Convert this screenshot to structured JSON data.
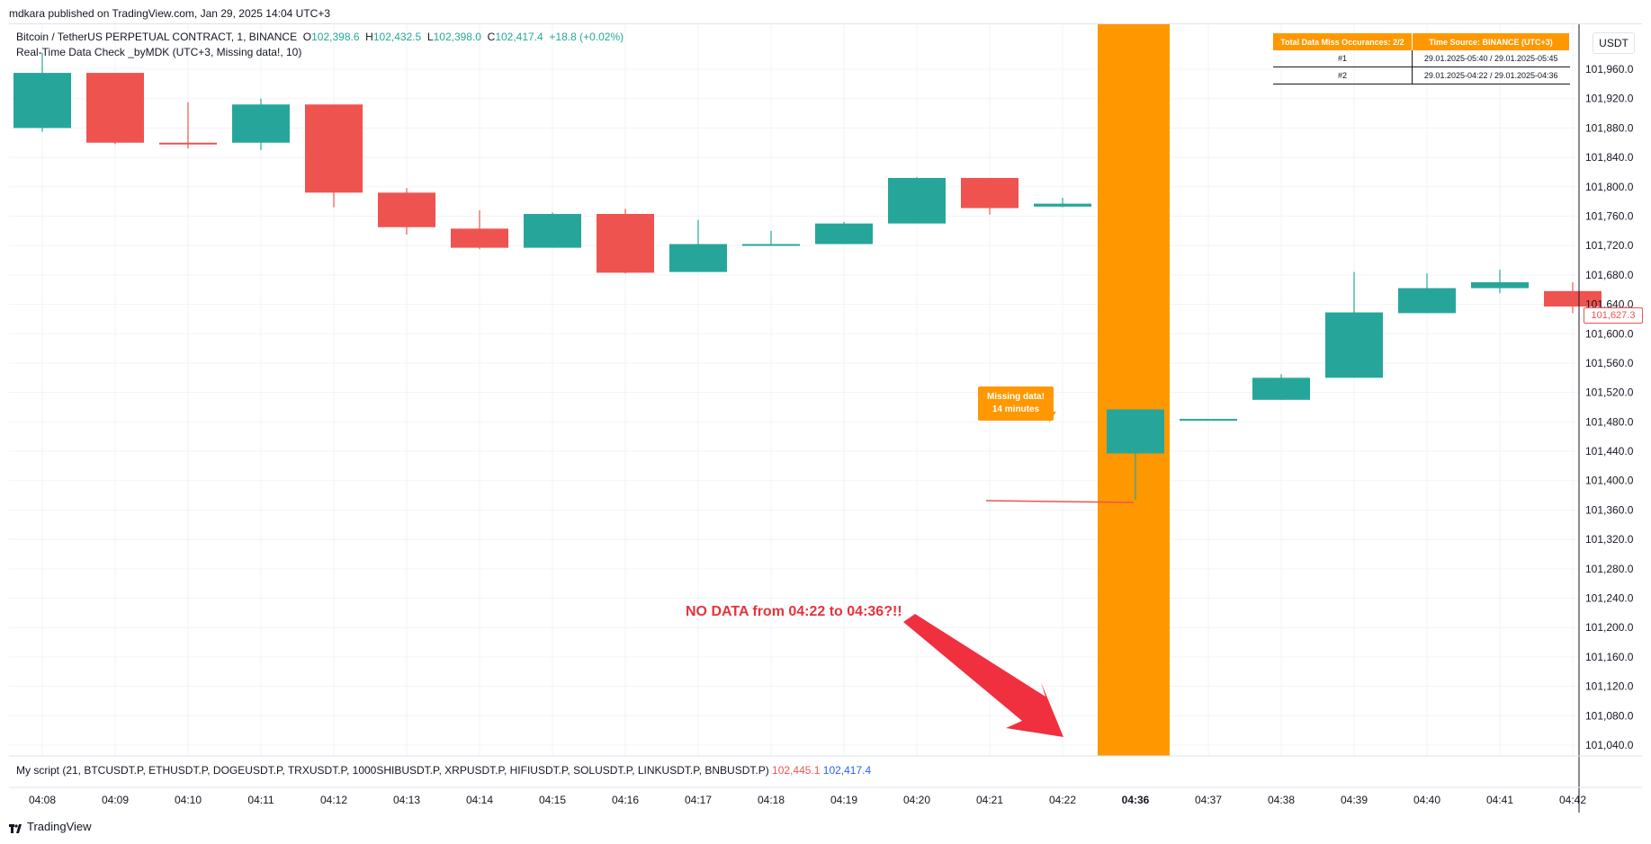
{
  "header": {
    "publish_line": "mdkara published on TradingView.com, Jan 29, 2025 14:04 UTC+3"
  },
  "legend": {
    "symbol": "Bitcoin / TetherUS PERPETUAL CONTRACT, 1, BINANCE",
    "o_label": "O",
    "o": "102,398.6",
    "h_label": "H",
    "h": "102,432.5",
    "l_label": "L",
    "l": "102,398.0",
    "c_label": "C",
    "c": "102,417.4",
    "change": "+18.8 (+0.02%)",
    "indicator": "Real-Time Data Check _byMDK (UTC+3, Missing data!, 10)"
  },
  "axis": {
    "unit": "USDT",
    "last_price_tag": "101,627.3"
  },
  "table": {
    "headers": [
      "Total Data Miss Occurances: 2/2",
      "Time Source: BINANCE (UTC+3)"
    ],
    "rows": [
      {
        "idx": "#1",
        "range": "29.01.2025-05:40 / 29.01.2025-05:45"
      },
      {
        "idx": "#2",
        "range": "29.01.2025-04:22 / 29.01.2025-04:36"
      }
    ]
  },
  "callout": {
    "line1": "Missing data!",
    "line2": "14 minutes"
  },
  "annotation": {
    "text": "NO DATA from 04:22 to 04:36?!!"
  },
  "script": {
    "label": "My script (21, BTCUSDT.P, ETHUSDT.P, DOGEUSDT.P, TRXUSDT.P, 1000SHIBUSDT.P, XRPUSDT.P, HIFIUSDT.P, SOLUSDT.P, LINKUSDT.P, BNBUSDT.P)",
    "value1": "102,445.1",
    "value2": "102,417.4"
  },
  "footer": {
    "brand": "TradingView"
  },
  "colors": {
    "up": "#26a69a",
    "down": "#ef5350",
    "highlight": "#ff9800",
    "arrow": "#f0303f"
  },
  "chart_data": {
    "type": "candlestick",
    "yaxis_ticks": [
      101960,
      101920,
      101880,
      101840,
      101800,
      101760,
      101720,
      101680,
      101640,
      101600,
      101560,
      101520,
      101480,
      101440,
      101400,
      101360,
      101320,
      101280,
      101240,
      101200,
      101160,
      101120,
      101080,
      101040
    ],
    "ylim": [
      101030,
      101990
    ],
    "highlighted_bar": "04:36",
    "candles": [
      {
        "t": "04:08",
        "o": 101880,
        "h": 101982,
        "l": 101875,
        "c": 101955
      },
      {
        "t": "04:09",
        "o": 101955,
        "h": 101955,
        "l": 101858,
        "c": 101860
      },
      {
        "t": "04:10",
        "o": 101860,
        "h": 101915,
        "l": 101852,
        "c": 101858
      },
      {
        "t": "04:11",
        "o": 101860,
        "h": 101920,
        "l": 101850,
        "c": 101912
      },
      {
        "t": "04:12",
        "o": 101912,
        "h": 101912,
        "l": 101772,
        "c": 101792
      },
      {
        "t": "04:13",
        "o": 101792,
        "h": 101798,
        "l": 101735,
        "c": 101745
      },
      {
        "t": "04:14",
        "o": 101743,
        "h": 101768,
        "l": 101715,
        "c": 101717
      },
      {
        "t": "04:15",
        "o": 101717,
        "h": 101765,
        "l": 101717,
        "c": 101763
      },
      {
        "t": "04:16",
        "o": 101763,
        "h": 101770,
        "l": 101682,
        "c": 101683
      },
      {
        "t": "04:17",
        "o": 101684,
        "h": 101755,
        "l": 101684,
        "c": 101722
      },
      {
        "t": "04:18",
        "o": 101720,
        "h": 101740,
        "l": 101720,
        "c": 101722
      },
      {
        "t": "04:19",
        "o": 101722,
        "h": 101752,
        "l": 101722,
        "c": 101750
      },
      {
        "t": "04:20",
        "o": 101750,
        "h": 101813,
        "l": 101750,
        "c": 101812
      },
      {
        "t": "04:21",
        "o": 101812,
        "h": 101812,
        "l": 101762,
        "c": 101771
      },
      {
        "t": "04:22",
        "o": 101773,
        "h": 101785,
        "l": 101772,
        "c": 101777
      },
      {
        "t": "04:36",
        "o": 101437,
        "h": 101497,
        "l": 101374,
        "c": 101497
      },
      {
        "t": "04:37",
        "o": 101483,
        "h": 101483,
        "l": 101482,
        "c": 101484
      },
      {
        "t": "04:38",
        "o": 101510,
        "h": 101545,
        "l": 101510,
        "c": 101540
      },
      {
        "t": "04:39",
        "o": 101540,
        "h": 101684,
        "l": 101540,
        "c": 101629
      },
      {
        "t": "04:40",
        "o": 101628,
        "h": 101682,
        "l": 101628,
        "c": 101662
      },
      {
        "t": "04:41",
        "o": 101662,
        "h": 101687,
        "l": 101655,
        "c": 101670
      },
      {
        "t": "04:42",
        "o": 101658,
        "h": 101670,
        "l": 101628,
        "c": 101637
      }
    ]
  }
}
